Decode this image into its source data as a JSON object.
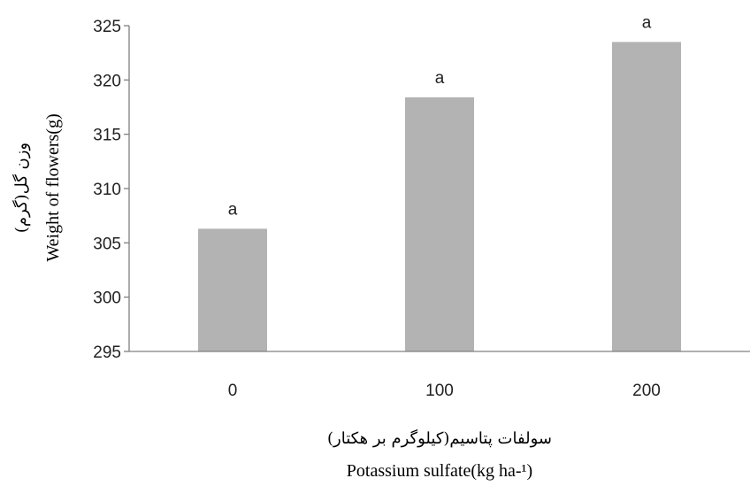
{
  "chart_data": {
    "type": "bar",
    "categories": [
      "0",
      "100",
      "200"
    ],
    "values": [
      306.3,
      318.4,
      323.5
    ],
    "data_labels": [
      "a",
      "a",
      "a"
    ],
    "ylim": [
      295,
      325
    ],
    "yticks": [
      295,
      300,
      305,
      310,
      315,
      320,
      325
    ],
    "ylabel": "Weight of flowers(g)",
    "ylabel_fa": "وزن گل(گرم)",
    "xlabel": "Potassium sulfate(kg ha-¹)",
    "xlabel_fa": "سولفات پتاسیم(کیلوگرم بر هکتار)",
    "grid": false,
    "legend": "none",
    "bar_color": "#b3b3b3",
    "axis_color": "#808080"
  }
}
